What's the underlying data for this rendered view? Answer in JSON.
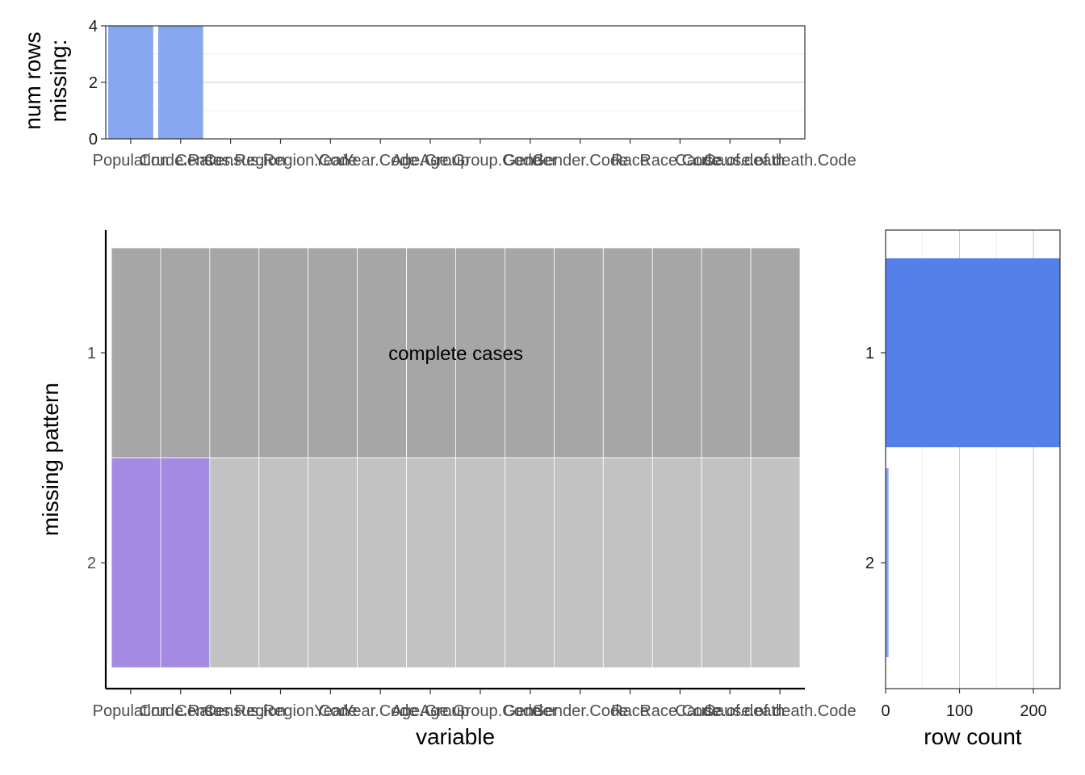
{
  "chart_data": [
    {
      "type": "bar",
      "panel": "top",
      "ylabel": [
        "num rows",
        "missing:"
      ],
      "xlabel": "",
      "ylim": [
        0,
        4
      ],
      "yticks": [
        0,
        2,
        4
      ],
      "categories": [
        "Population",
        "Crude.Rate",
        "Census.Region",
        "Census.Region.Code",
        "Year",
        "Year.Code",
        "Age.Group",
        "Age.Group.Code",
        "Gender",
        "Gender.Code",
        "Race",
        "Race.Code",
        "Cause.of.death",
        "Cause.of.death.Code"
      ],
      "values": [
        4,
        4,
        0,
        0,
        0,
        0,
        0,
        0,
        0,
        0,
        0,
        0,
        0,
        0
      ],
      "colors": {
        "bar": "#86A6F0"
      },
      "grid": true
    },
    {
      "type": "heatmap",
      "panel": "main",
      "xlabel": "variable",
      "ylabel": "missing pattern",
      "x": [
        "Population",
        "Crude.Rate",
        "Census.Region",
        "Census.Region.Code",
        "Year",
        "Year.Code",
        "Age.Group",
        "Age.Group.Code",
        "Gender",
        "Gender.Code",
        "Race",
        "Race.Code",
        "Cause.of.death",
        "Cause.of.death.Code"
      ],
      "patterns": [
        "1",
        "2"
      ],
      "missing": [
        [
          0,
          0,
          0,
          0,
          0,
          0,
          0,
          0,
          0,
          0,
          0,
          0,
          0,
          0
        ],
        [
          1,
          1,
          0,
          0,
          0,
          0,
          0,
          0,
          0,
          0,
          0,
          0,
          0,
          0
        ]
      ],
      "annotation": "complete cases",
      "colors": {
        "complete_row": "#A6A6A6",
        "present": "#C2C2C2",
        "missing": "#A48AE3"
      }
    },
    {
      "type": "bar",
      "panel": "right",
      "orientation": "horizontal",
      "xlabel": "row count",
      "categories": [
        "1",
        "2"
      ],
      "values": [
        236,
        4
      ],
      "xlim": [
        0,
        236
      ],
      "xticks": [
        0,
        100,
        200
      ],
      "colors": {
        "complete_bar": "#5580E8",
        "bar": "#86A6F0"
      },
      "grid": true
    }
  ]
}
